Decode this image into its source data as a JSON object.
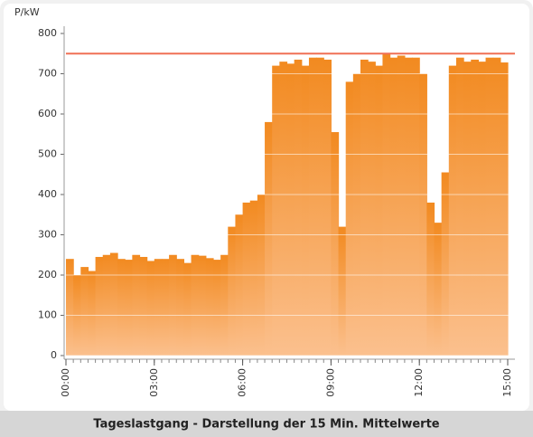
{
  "chart_data": {
    "type": "step-area",
    "y_label": "P/kW",
    "caption": "Tageslastgang - Darstellung der 15 Min. Mittelwerte",
    "color": "#f28a20",
    "x": [
      0,
      0.25,
      0.5,
      0.75,
      1,
      1.25,
      1.5,
      1.75,
      2,
      2.25,
      2.5,
      2.75,
      3,
      3.25,
      3.5,
      3.75,
      4,
      4.25,
      4.5,
      4.75,
      5,
      5.25,
      5.5,
      5.75,
      6,
      6.25,
      6.5,
      6.75,
      7,
      7.25,
      7.5,
      7.75,
      8,
      8.25,
      8.5,
      8.75,
      9,
      9.25,
      9.5,
      9.75,
      10,
      10.25,
      10.5,
      10.75,
      11,
      11.25,
      11.5,
      11.75,
      12,
      12.25,
      12.5,
      12.75,
      13,
      13.25,
      13.5,
      13.75,
      14,
      14.25,
      14.5,
      14.75
    ],
    "values": [
      240,
      200,
      220,
      210,
      245,
      250,
      255,
      240,
      238,
      250,
      245,
      235,
      240,
      240,
      250,
      240,
      230,
      250,
      248,
      242,
      238,
      250,
      320,
      350,
      380,
      385,
      400,
      580,
      720,
      730,
      725,
      735,
      720,
      740,
      740,
      735,
      555,
      320,
      680,
      700,
      735,
      730,
      720,
      750,
      740,
      745,
      740,
      740,
      700,
      380,
      330,
      455,
      720,
      740,
      730,
      735,
      730,
      740,
      740,
      728
    ],
    "xlim": [
      0,
      15
    ],
    "xticks": [
      {
        "value": 0,
        "label": "00:00"
      },
      {
        "value": 3,
        "label": "03:00"
      },
      {
        "value": 6,
        "label": "06:00"
      },
      {
        "value": 9,
        "label": "09:00"
      },
      {
        "value": 12,
        "label": "12:00"
      },
      {
        "value": 15,
        "label": "15:00"
      }
    ],
    "ylim": [
      0,
      800
    ],
    "yticks": [
      0,
      100,
      200,
      300,
      400,
      500,
      600,
      700,
      800
    ],
    "grid": true,
    "reference_line": {
      "value": 750,
      "color": "#f07055"
    }
  }
}
